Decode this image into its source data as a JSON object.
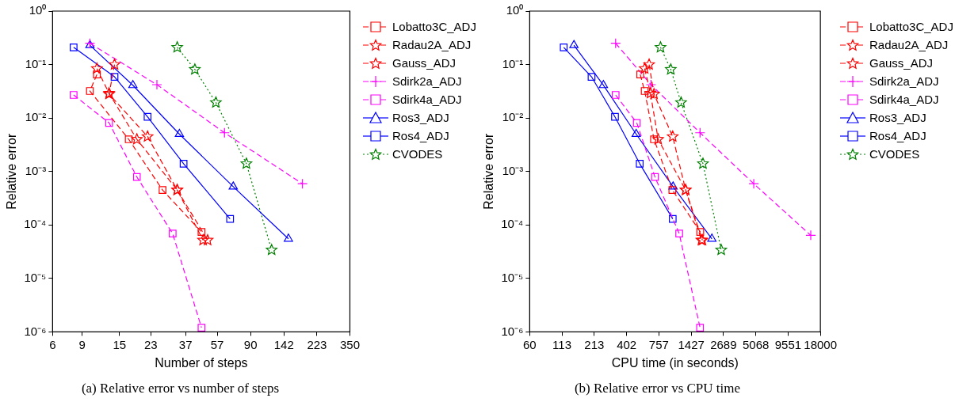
{
  "chart_data": [
    {
      "type": "line",
      "title": "(a) Relative error vs number of steps",
      "xlabel": "Number of steps",
      "ylabel": "Relative error",
      "log": "xy",
      "legend": "right",
      "grid": false,
      "xlim": [
        6,
        350
      ],
      "xticks": [
        6,
        9,
        15,
        23,
        37,
        57,
        90,
        142,
        223,
        350
      ],
      "ylim": [
        1e-06,
        1
      ],
      "yticks": [
        {
          "value": 1e-06,
          "label": "10⁻⁶"
        },
        {
          "value": 1e-05,
          "label": "10⁻⁵"
        },
        {
          "value": 0.0001,
          "label": "10⁻⁴"
        },
        {
          "value": 0.001,
          "label": "10⁻³"
        },
        {
          "value": 0.01,
          "label": "10⁻²"
        },
        {
          "value": 0.1,
          "label": "10⁻¹"
        },
        {
          "value": 1,
          "label": "10⁰"
        }
      ],
      "series": [
        {
          "name": "Lobatto3C_ADJ",
          "color": "#ff0000",
          "marker": "square",
          "line_style": "dashed",
          "x": [
            11,
            10,
            17,
            27,
            46
          ],
          "values": [
            0.065,
            0.032,
            0.004,
            0.00045,
            7.4e-05
          ]
        },
        {
          "name": "Radau2A_ADJ",
          "color": "#ff0000",
          "marker": "star",
          "line_style": "dashed",
          "x": [
            11,
            13,
            19,
            33,
            47
          ],
          "values": [
            0.084,
            0.029,
            0.004,
            0.00045,
            5.2e-05
          ]
        },
        {
          "name": "Gauss_ADJ",
          "color": "#ff0000",
          "marker": "star",
          "line_style": "dashed",
          "x": [
            14,
            13,
            22,
            33,
            50
          ],
          "values": [
            0.1,
            0.028,
            0.0045,
            0.00045,
            5.2e-05
          ]
        },
        {
          "name": "Sdirk2a_ADJ",
          "color": "#ff00ff",
          "marker": "cross",
          "line_style": "dashed",
          "x": [
            10,
            25,
            63,
            183
          ],
          "values": [
            0.25,
            0.042,
            0.0053,
            0.00059
          ]
        },
        {
          "name": "Sdirk4a_ADJ",
          "color": "#ff00ff",
          "marker": "square",
          "line_style": "dashed",
          "x": [
            8,
            13,
            19,
            31,
            46
          ],
          "values": [
            0.027,
            0.0081,
            0.00079,
            6.9e-05,
            1.2e-06
          ]
        },
        {
          "name": "Ros3_ADJ",
          "color": "#0000ff",
          "marker": "triangle",
          "line_style": "solid",
          "x": [
            10,
            18,
            34,
            71,
            151
          ],
          "values": [
            0.23,
            0.041,
            0.005,
            0.00052,
            5.5e-05
          ]
        },
        {
          "name": "Ros4_ADJ",
          "color": "#0000ff",
          "marker": "square",
          "line_style": "solid",
          "x": [
            8,
            14,
            22,
            36,
            68
          ],
          "values": [
            0.21,
            0.059,
            0.0105,
            0.0014,
            0.00013
          ]
        },
        {
          "name": "CVODES",
          "color": "#008000",
          "marker": "star",
          "line_style": "dotted",
          "x": [
            33,
            42,
            56,
            85,
            120
          ],
          "values": [
            0.21,
            0.081,
            0.0195,
            0.0014,
            3.4e-05
          ]
        }
      ]
    },
    {
      "type": "line",
      "title": "(b) Relative error vs CPU time",
      "xlabel": "CPU time (in seconds)",
      "ylabel": "Relative error",
      "log": "xy",
      "legend": "right",
      "grid": false,
      "xlim": [
        60,
        18000
      ],
      "xticks": [
        60,
        113,
        213,
        402,
        757,
        1427,
        2689,
        5068,
        9551,
        18000
      ],
      "ylim": [
        1e-06,
        1
      ],
      "yticks": [
        {
          "value": 1e-06,
          "label": "10⁻⁶"
        },
        {
          "value": 1e-05,
          "label": "10⁻⁵"
        },
        {
          "value": 0.0001,
          "label": "10⁻⁴"
        },
        {
          "value": 0.001,
          "label": "10⁻³"
        },
        {
          "value": 0.01,
          "label": "10⁻²"
        },
        {
          "value": 0.1,
          "label": "10⁻¹"
        },
        {
          "value": 1,
          "label": "10⁰"
        }
      ],
      "series": [
        {
          "name": "Lobatto3C_ADJ",
          "color": "#ff0000",
          "marker": "square",
          "line_style": "dashed",
          "x": [
            525,
            573,
            688,
            986,
            1705
          ],
          "values": [
            0.065,
            0.032,
            0.004,
            0.00045,
            7.4e-05
          ]
        },
        {
          "name": "Radau2A_ADJ",
          "color": "#ff0000",
          "marker": "star",
          "line_style": "dashed",
          "x": [
            573,
            642,
            746,
            1280,
            1744
          ],
          "values": [
            0.084,
            0.029,
            0.004,
            0.00045,
            5.2e-05
          ]
        },
        {
          "name": "Gauss_ADJ",
          "color": "#ff0000",
          "marker": "star",
          "line_style": "dashed",
          "x": [
            625,
            688,
            993,
            1280,
            1779
          ],
          "values": [
            0.1,
            0.028,
            0.0045,
            0.00045,
            5.2e-05
          ]
        },
        {
          "name": "Sdirk2a_ADJ",
          "color": "#ff00ff",
          "marker": "cross",
          "line_style": "dashed",
          "x": [
            324,
            649,
            1698,
            4869,
            14900
          ],
          "values": [
            0.25,
            0.042,
            0.0053,
            0.00059,
            6.4e-05
          ]
        },
        {
          "name": "Sdirk4a_ADJ",
          "color": "#ff00ff",
          "marker": "square",
          "line_style": "dashed",
          "x": [
            324,
            491,
            701,
            1128,
            1698
          ],
          "values": [
            0.027,
            0.0081,
            0.00079,
            6.9e-05,
            1.2e-06
          ]
        },
        {
          "name": "Ros3_ADJ",
          "color": "#0000ff",
          "marker": "triangle",
          "line_style": "solid",
          "x": [
            143,
            255,
            485,
            1000,
            2142
          ],
          "values": [
            0.23,
            0.041,
            0.005,
            0.00052,
            5.5e-05
          ]
        },
        {
          "name": "Ros4_ADJ",
          "color": "#0000ff",
          "marker": "square",
          "line_style": "solid",
          "x": [
            117,
            202,
            320,
            520,
            993
          ],
          "values": [
            0.21,
            0.059,
            0.0105,
            0.0014,
            0.00013
          ]
        },
        {
          "name": "CVODES",
          "color": "#008000",
          "marker": "star",
          "line_style": "dotted",
          "x": [
            782,
            956,
            1170,
            1798,
            2572
          ],
          "values": [
            0.21,
            0.081,
            0.0195,
            0.0014,
            3.4e-05
          ]
        }
      ]
    }
  ]
}
